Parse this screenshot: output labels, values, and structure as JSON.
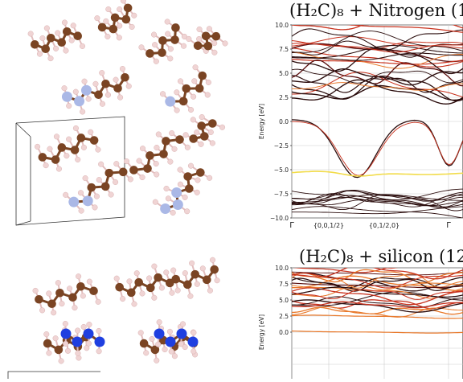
{
  "colors": {
    "carbon": "#7a4423",
    "hydrogen": "#f0d4d4",
    "nitrogen": "#aab8e6",
    "silicon": "#1f3fe0",
    "band_dark": "#2a0c0c",
    "band_mid": "#c8321e",
    "band_warm": "#e8782a",
    "band_yellow": "#f2dc4a"
  },
  "chart_data": [
    {
      "type": "line",
      "title": "(H₂C)₈ + Nitrogen (1",
      "xlabel": "",
      "ylabel": "Energy [eV]",
      "ylim": [
        -10,
        10
      ],
      "yticks": [
        "10.0",
        "7.5",
        "5.0",
        "2.5",
        "0.0",
        "−2.5",
        "−5.0",
        "−7.5",
        "−10.0"
      ],
      "xticks": [
        "Γ",
        "{0,0,1/2}",
        "{0,1/2,0}",
        "Γ"
      ],
      "grid": true,
      "series_summary": "electronic bands, dense between 3 and 10 eV and between -10 and -6.5 eV, with a parabolic band dipping from 0 eV to about -5.8 eV and a yellow band near -5.2 eV"
    },
    {
      "type": "line",
      "title": "(H₂C)₈ + silicon (12",
      "xlabel": "",
      "ylabel": "Energy [eV]",
      "ylim": [
        -10,
        10
      ],
      "yticks": [
        "10.0",
        "7.5",
        "5.0",
        "2.5",
        "0.0"
      ],
      "grid": true
    }
  ]
}
